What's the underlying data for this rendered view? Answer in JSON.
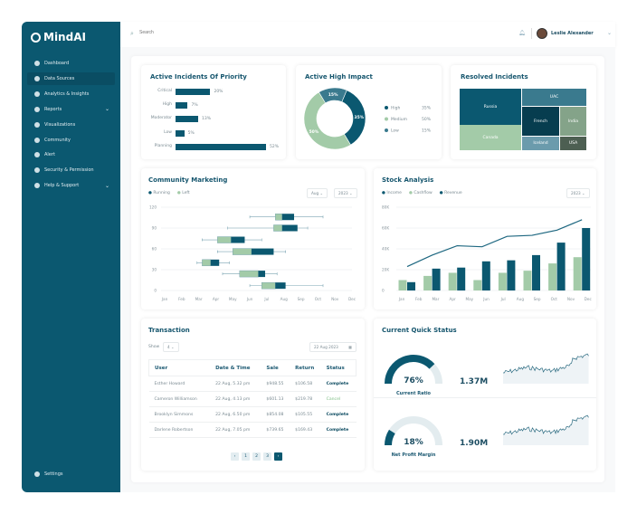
{
  "app": {
    "name": "MindAI"
  },
  "sidebar": {
    "items": [
      {
        "label": "Dashboard",
        "icon": "home-icon"
      },
      {
        "label": "Data Sources",
        "icon": "database-icon",
        "active": true
      },
      {
        "label": "Analytics & Insights",
        "icon": "bulb-icon"
      },
      {
        "label": "Reports",
        "icon": "report-icon",
        "expandable": true
      },
      {
        "label": "Visualizations",
        "icon": "pie-icon"
      },
      {
        "label": "Community",
        "icon": "community-icon"
      },
      {
        "label": "Alert",
        "icon": "alert-icon"
      },
      {
        "label": "Security & Permission",
        "icon": "user-lock-icon"
      },
      {
        "label": "Help & Support",
        "icon": "help-icon",
        "expandable": true
      }
    ],
    "settings": "Settings"
  },
  "header": {
    "search_placeholder": "Search",
    "user": "Leslie Alexander"
  },
  "colors": {
    "dark": "#0b5870",
    "green": "#a3cba8",
    "teal": "#3a7a8e"
  },
  "priority": {
    "title": "Active Incidents Of Priority",
    "items": [
      {
        "label": "Critical",
        "value": 20,
        "text": "20%"
      },
      {
        "label": "High",
        "value": 7,
        "text": "7%"
      },
      {
        "label": "Moderator",
        "value": 13,
        "text": "13%"
      },
      {
        "label": "Low",
        "value": 5,
        "text": "5%"
      },
      {
        "label": "Planning",
        "value": 52,
        "text": "52%"
      }
    ]
  },
  "impact": {
    "title": "Active High Impact",
    "items": [
      {
        "label": "High",
        "value": 35,
        "text": "35%",
        "color": "#0b5870"
      },
      {
        "label": "Medium",
        "value": 50,
        "text": "50%",
        "color": "#a3cba8"
      },
      {
        "label": "Low",
        "value": 15,
        "text": "15%",
        "color": "#3a7a8e"
      }
    ]
  },
  "resolved": {
    "title": "Resolved Incidents",
    "items": [
      {
        "label": "Russia",
        "color": "#0b5870"
      },
      {
        "label": "Canada",
        "color": "#a3cba8"
      },
      {
        "label": "UAC",
        "color": "#3a7a8e"
      },
      {
        "label": "French",
        "color": "#073d4f"
      },
      {
        "label": "India",
        "color": "#84a389"
      },
      {
        "label": "Iceland",
        "color": "#6b9bac"
      },
      {
        "label": "USA",
        "color": "#4d5f52"
      }
    ]
  },
  "community": {
    "title": "Community Marketing",
    "legend": [
      "Running",
      "Left"
    ],
    "month_select": "Aug",
    "year_select": "2023"
  },
  "stock": {
    "title": "Stock Analysis",
    "legend": [
      "Income",
      "Cashflow",
      "Revenue"
    ],
    "year_select": "2023"
  },
  "chart_data": [
    {
      "type": "boxplot",
      "title": "Community Marketing",
      "ylim": [
        0,
        120
      ],
      "yticks": [
        "0",
        "30",
        "60",
        "90",
        "120"
      ],
      "xticks": [
        "Jan",
        "Feb",
        "Mar",
        "Apr",
        "May",
        "Jun",
        "Jul",
        "Aug",
        "Sep",
        "Oct",
        "Nov",
        "Dec"
      ],
      "grid": true,
      "legend": "top-left",
      "series_names": [
        "Running",
        "Left"
      ],
      "boxes": [
        {
          "y": 106,
          "min": 6.0,
          "q1": 7.5,
          "median": 7.9,
          "q3": 8.6,
          "max": 10.3
        },
        {
          "y": 90,
          "min": 4.7,
          "q1": 7.4,
          "median": 7.9,
          "q3": 8.8,
          "max": 9.4
        },
        {
          "y": 73,
          "min": 3.2,
          "q1": 4.1,
          "median": 4.9,
          "q3": 5.7,
          "max": 6.7
        },
        {
          "y": 56,
          "min": 4.1,
          "q1": 5.0,
          "median": 6.1,
          "q3": 7.4,
          "max": 8.1
        },
        {
          "y": 40,
          "min": 2.9,
          "q1": 3.2,
          "median": 3.7,
          "q3": 4.2,
          "max": 4.8
        },
        {
          "y": 24,
          "min": 4.4,
          "q1": 5.4,
          "median": 6.5,
          "q3": 6.9,
          "max": 7.6
        },
        {
          "y": 7,
          "min": 6.0,
          "q1": 6.7,
          "median": 7.5,
          "q3": 8.1,
          "max": 10.3
        }
      ]
    },
    {
      "type": "bar+line",
      "title": "Stock Analysis",
      "ylim": [
        0,
        80000
      ],
      "yticks": [
        "0",
        "20K",
        "40K",
        "60K",
        "80K"
      ],
      "xticks": [
        "Jan",
        "Feb",
        "Mar",
        "Apr",
        "May",
        "Jun",
        "Jul",
        "Aug",
        "Sep",
        "Oct",
        "Nov",
        "Dec"
      ],
      "grid": true,
      "legend": "top-left",
      "series": [
        {
          "name": "Income",
          "type": "line",
          "values": [
            23000,
            34000,
            43000,
            42000,
            52000,
            53000,
            58000,
            68000
          ]
        },
        {
          "name": "Cashflow",
          "type": "bar",
          "values": [
            10000,
            14000,
            17000,
            10000,
            17000,
            19000,
            26000,
            32000
          ]
        },
        {
          "name": "Revenue",
          "type": "bar",
          "values": [
            8000,
            21000,
            22000,
            28000,
            29000,
            34000,
            46000,
            60000
          ]
        }
      ]
    }
  ],
  "transaction": {
    "title": "Transaction",
    "show_label": "Show",
    "show_value": "4",
    "date": "22 Aug 2023",
    "columns": [
      "User",
      "Date & Time",
      "Sale",
      "Return",
      "Status"
    ],
    "rows": [
      [
        "Esther Howard",
        "22 Aug, 5.32 pm",
        "$948.55",
        "$106.58",
        "Complete"
      ],
      [
        "Cameron Williamson",
        "22 Aug, 4.13 pm",
        "$601.13",
        "$219.78",
        "Cancel"
      ],
      [
        "Brooklyn Simmons",
        "22 Aug, 6.50 pm",
        "$854.08",
        "$105.55",
        "Complete"
      ],
      [
        "Darlene Robertson",
        "22 Aug, 7.05 pm",
        "$739.65",
        "$169.43",
        "Complete"
      ]
    ],
    "pages": [
      "1",
      "2",
      "3"
    ]
  },
  "quick": {
    "title": "Current Quick Status",
    "items": [
      {
        "percent": 76,
        "text": "76%",
        "label": "Current Ratio",
        "amount": "1.37M"
      },
      {
        "percent": 18,
        "text": "18%",
        "label": "Net Profit Margin",
        "amount": "1.90M"
      }
    ]
  }
}
